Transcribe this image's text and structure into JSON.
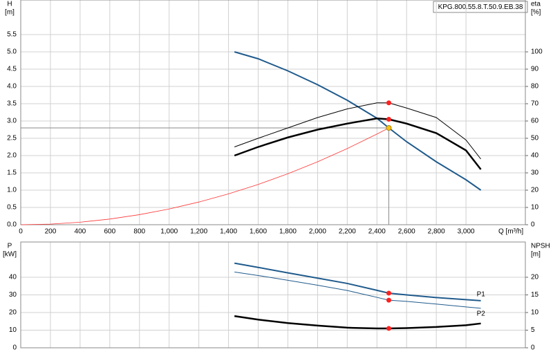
{
  "chart_data": [
    {
      "type": "line",
      "title": "KPG.800.55.8.T.50.9.EB.38",
      "y_label": "H",
      "y_unit": "[m]",
      "y2_label": "eta",
      "y2_unit": "[%]",
      "x_label": "Q [m³/h]",
      "xlim": [
        0,
        3400
      ],
      "ylim": [
        0,
        6.5
      ],
      "y2lim": [
        0,
        130
      ],
      "grid": true,
      "xticks": [
        0,
        200,
        400,
        600,
        800,
        {
          "value": 1000,
          "label": "1,000"
        },
        {
          "value": 1200,
          "label": "1,200"
        },
        {
          "value": 1400,
          "label": "1,400"
        },
        {
          "value": 1600,
          "label": "1,600"
        },
        {
          "value": 1800,
          "label": "1,800"
        },
        {
          "value": 2000,
          "label": "2,000"
        },
        {
          "value": 2200,
          "label": "2,200"
        },
        {
          "value": 2400,
          "label": "2,400"
        },
        {
          "value": 2600,
          "label": "2,600"
        },
        {
          "value": 2800,
          "label": "2,800"
        },
        {
          "value": 3000,
          "label": "3,000"
        }
      ],
      "yticks": [
        {
          "value": 0,
          "label": "0.0"
        },
        0.5,
        {
          "value": 1,
          "label": "1.0"
        },
        1.5,
        {
          "value": 2,
          "label": "2.0"
        },
        2.5,
        {
          "value": 3,
          "label": "3.0"
        },
        3.5,
        {
          "value": 4,
          "label": "4.0"
        },
        4.5,
        {
          "value": 5,
          "label": "5.0"
        },
        5.5
      ],
      "y2ticks": [
        0,
        10,
        20,
        30,
        40,
        50,
        60,
        70,
        80,
        90,
        100
      ],
      "duty_point": {
        "x": 2480,
        "y": 2.8
      },
      "series": [
        {
          "color": "#1f5a8c",
          "width": 2,
          "point_color": "#ff2020",
          "x": [
            1440,
            1600,
            1800,
            2000,
            2200,
            2400,
            2480,
            2600,
            2800,
            3000,
            3100
          ],
          "values": [
            5.0,
            4.8,
            4.45,
            4.05,
            3.6,
            3.08,
            2.8,
            2.4,
            1.82,
            1.3,
            1.0
          ]
        },
        {
          "color": "#000000",
          "width": 2.5,
          "axis": "y2",
          "point_color": "#ff2020",
          "x": [
            1440,
            1600,
            1800,
            2000,
            2200,
            2400,
            2480,
            2600,
            2800,
            3000,
            3100
          ],
          "values": [
            40,
            45,
            50.5,
            55,
            58.5,
            61.5,
            61,
            58.5,
            53,
            43,
            32
          ]
        },
        {
          "color": "#000000",
          "width": 1,
          "axis": "y2",
          "point_color": "#ff2020",
          "x": [
            1440,
            1600,
            1800,
            2000,
            2200,
            2400,
            2480,
            2600,
            2800,
            3000,
            3100
          ],
          "values": [
            45,
            50,
            56,
            62,
            67,
            70.5,
            70.5,
            67.5,
            62,
            49,
            38
          ]
        },
        {
          "color": "#ff3333",
          "width": 0.8,
          "point_color": "#f5c518",
          "x": [
            0,
            200,
            400,
            600,
            800,
            1000,
            1200,
            1400,
            1600,
            1800,
            2000,
            2200,
            2400,
            2480
          ],
          "values": [
            0,
            0.018,
            0.073,
            0.164,
            0.291,
            0.455,
            0.656,
            0.892,
            1.165,
            1.475,
            1.821,
            2.203,
            2.622,
            2.8
          ]
        }
      ]
    },
    {
      "type": "line",
      "y_label": "P",
      "y_unit": "[kW]",
      "y2_label": "NPSH",
      "y2_unit": "[m]",
      "xlim": [
        0,
        3400
      ],
      "ylim": [
        0,
        60
      ],
      "y2lim": [
        0,
        30
      ],
      "grid": true,
      "yticks": [
        0,
        10,
        20,
        30,
        40
      ],
      "y2ticks": [
        0,
        5,
        10,
        15,
        20
      ],
      "duty_point": {
        "x": 2480
      },
      "series": [
        {
          "name": "P1",
          "color": "#1f5a8c",
          "width": 2,
          "point_color": "#ff2020",
          "x": [
            1440,
            1600,
            1800,
            2000,
            2200,
            2400,
            2480,
            2600,
            2800,
            3000,
            3100
          ],
          "values": [
            48,
            45.6,
            42.5,
            39.5,
            36.5,
            32.6,
            31,
            30,
            28.5,
            27.3,
            26.7
          ]
        },
        {
          "name": "P2",
          "color": "#1f5a8c",
          "width": 1,
          "point_color": "#ff2020",
          "x": [
            1440,
            1600,
            1800,
            2000,
            2200,
            2400,
            2480,
            2600,
            2800,
            3000,
            3100
          ],
          "values": [
            43,
            41,
            38.3,
            35.5,
            32.5,
            28.6,
            27,
            26.3,
            24.8,
            23.2,
            22.4
          ]
        },
        {
          "color": "#000000",
          "width": 2.5,
          "axis": "y2",
          "point_color": "#ff2020",
          "x": [
            1440,
            1600,
            1800,
            2000,
            2200,
            2400,
            2480,
            2600,
            2800,
            3000,
            3100
          ],
          "values": [
            9,
            8,
            7,
            6.3,
            5.7,
            5.5,
            5.5,
            5.6,
            5.9,
            6.4,
            6.9
          ]
        }
      ]
    }
  ]
}
